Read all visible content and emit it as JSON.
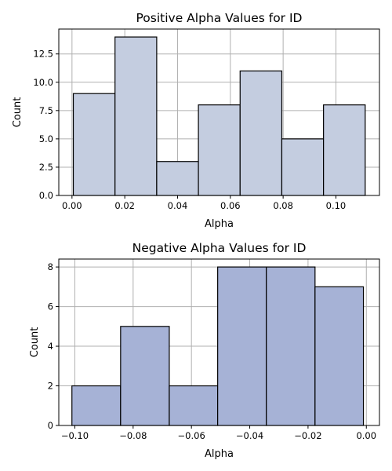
{
  "chart_data": [
    {
      "type": "bar",
      "title": "Positive Alpha Values for ID",
      "xlabel": "Alpha",
      "ylabel": "Count",
      "color": "#c4cde0",
      "grid": true,
      "xlim": [
        -0.005,
        0.1165
      ],
      "ylim": [
        0,
        14.7
      ],
      "xticks": [
        0.0,
        0.02,
        0.04,
        0.06,
        0.08,
        0.1
      ],
      "xtick_labels": [
        "0.00",
        "0.02",
        "0.04",
        "0.06",
        "0.08",
        "0.10"
      ],
      "yticks": [
        0,
        2.5,
        5,
        7.5,
        10,
        12.5
      ],
      "ytick_labels": [
        "0.0",
        "2.5",
        "5.0",
        "7.5",
        "10.0",
        "12.5"
      ],
      "bins": [
        {
          "x0": 0.0005,
          "x1": 0.0163,
          "count": 9
        },
        {
          "x0": 0.0163,
          "x1": 0.0321,
          "count": 14
        },
        {
          "x0": 0.0321,
          "x1": 0.0479,
          "count": 3
        },
        {
          "x0": 0.0479,
          "x1": 0.0637,
          "count": 8
        },
        {
          "x0": 0.0637,
          "x1": 0.0795,
          "count": 11
        },
        {
          "x0": 0.0795,
          "x1": 0.0953,
          "count": 5
        },
        {
          "x0": 0.0953,
          "x1": 0.1111,
          "count": 8
        }
      ]
    },
    {
      "type": "bar",
      "title": "Negative Alpha Values for ID",
      "xlabel": "Alpha",
      "ylabel": "Count",
      "color": "#a6b2d6",
      "grid": true,
      "xlim": [
        -0.1055,
        0.0045
      ],
      "ylim": [
        0,
        8.4
      ],
      "xticks": [
        -0.1,
        -0.08,
        -0.06,
        -0.04,
        -0.02,
        0.0
      ],
      "xtick_labels": [
        "−0.10",
        "−0.08",
        "−0.06",
        "−0.04",
        "−0.02",
        "0.00"
      ],
      "yticks": [
        0,
        2,
        4,
        6,
        8
      ],
      "ytick_labels": [
        "0",
        "2",
        "4",
        "6",
        "8"
      ],
      "bins": [
        {
          "x0": -0.101,
          "x1": -0.0843,
          "count": 2
        },
        {
          "x0": -0.0843,
          "x1": -0.0676,
          "count": 5
        },
        {
          "x0": -0.0676,
          "x1": -0.051,
          "count": 2
        },
        {
          "x0": -0.051,
          "x1": -0.0343,
          "count": 8
        },
        {
          "x0": -0.0343,
          "x1": -0.0176,
          "count": 8
        },
        {
          "x0": -0.0176,
          "x1": -0.001,
          "count": 7
        }
      ]
    }
  ]
}
